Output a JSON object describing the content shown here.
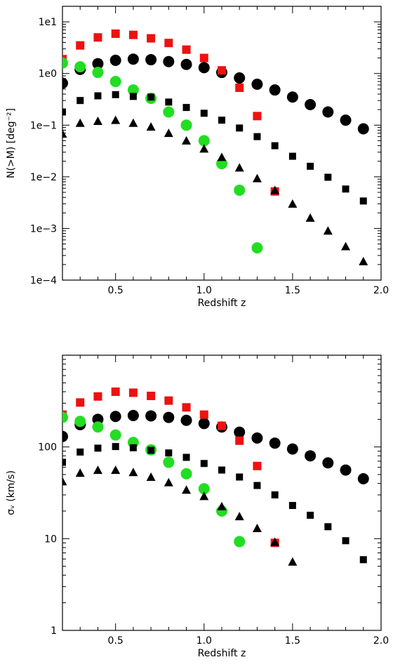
{
  "chart_data": [
    {
      "type": "scatter",
      "xlabel": "Redshift z",
      "ylabel": "N(>M) [deg⁻²]",
      "xlim": [
        0.2,
        2.0
      ],
      "ylim": [
        0.0001,
        20
      ],
      "yscale": "log",
      "grid": false,
      "x_ticks": [
        {
          "value": 0.5,
          "label": "0.5"
        },
        {
          "value": 1.0,
          "label": "1.0"
        },
        {
          "value": 1.5,
          "label": "1.5"
        },
        {
          "value": 2.0,
          "label": "2.0"
        }
      ],
      "y_ticks": [
        {
          "value": 0.0001,
          "label": "1e−4"
        },
        {
          "value": 0.001,
          "label": "1e−3"
        },
        {
          "value": 0.01,
          "label": "1e−2"
        },
        {
          "value": 0.1,
          "label": "1e−1"
        },
        {
          "value": 1,
          "label": "1e0"
        },
        {
          "value": 10,
          "label": "1e1"
        }
      ],
      "series": [
        {
          "marker": "circle-large",
          "color": "#000000",
          "x": [
            0.2,
            0.3,
            0.4,
            0.5,
            0.6,
            0.7,
            0.8,
            0.9,
            1.0,
            1.1,
            1.2,
            1.3,
            1.4,
            1.5,
            1.6,
            1.7,
            1.8,
            1.9
          ],
          "y": [
            0.65,
            1.2,
            1.55,
            1.8,
            1.9,
            1.85,
            1.7,
            1.5,
            1.3,
            1.05,
            0.82,
            0.62,
            0.48,
            0.35,
            0.25,
            0.18,
            0.125,
            0.085
          ]
        },
        {
          "marker": "square-large",
          "color": "#ee1111",
          "x": [
            0.2,
            0.3,
            0.4,
            0.5,
            0.6,
            0.7,
            0.8,
            0.9,
            1.0,
            1.1,
            1.2,
            1.3,
            1.4
          ],
          "y": [
            1.9,
            3.5,
            5.0,
            5.9,
            5.6,
            4.8,
            3.9,
            2.9,
            2.0,
            1.15,
            0.53,
            0.15,
            0.0052
          ]
        },
        {
          "marker": "circle-large",
          "color": "#22dd22",
          "x": [
            0.2,
            0.3,
            0.4,
            0.5,
            0.6,
            0.7,
            0.8,
            0.9,
            1.0,
            1.1,
            1.2,
            1.3
          ],
          "y": [
            1.6,
            1.35,
            1.05,
            0.7,
            0.48,
            0.33,
            0.18,
            0.1,
            0.05,
            0.018,
            0.0055,
            0.00042
          ]
        },
        {
          "marker": "square-small",
          "color": "#000000",
          "x": [
            0.2,
            0.3,
            0.4,
            0.5,
            0.6,
            0.7,
            0.8,
            0.9,
            1.0,
            1.1,
            1.2,
            1.3,
            1.4,
            1.5,
            1.6,
            1.7,
            1.8,
            1.9
          ],
          "y": [
            0.18,
            0.3,
            0.37,
            0.39,
            0.36,
            0.35,
            0.28,
            0.22,
            0.17,
            0.125,
            0.088,
            0.06,
            0.04,
            0.025,
            0.016,
            0.0098,
            0.0058,
            0.0034
          ]
        },
        {
          "marker": "triangle",
          "color": "#000000",
          "x": [
            0.2,
            0.3,
            0.4,
            0.5,
            0.6,
            0.7,
            0.8,
            0.9,
            1.0,
            1.1,
            1.2,
            1.3,
            1.4,
            1.5,
            1.6,
            1.7,
            1.8,
            1.9
          ],
          "y": [
            0.068,
            0.11,
            0.12,
            0.125,
            0.11,
            0.093,
            0.07,
            0.05,
            0.035,
            0.024,
            0.015,
            0.0093,
            0.0055,
            0.003,
            0.0016,
            0.0009,
            0.00045,
            0.00023
          ]
        }
      ]
    },
    {
      "type": "scatter",
      "xlabel": "Redshift z",
      "ylabel": "σᵥ (km/s)",
      "xlim": [
        0.2,
        2.0
      ],
      "ylim": [
        1,
        1000
      ],
      "yscale": "log",
      "grid": false,
      "x_ticks": [
        {
          "value": 0.5,
          "label": "0.5"
        },
        {
          "value": 1.0,
          "label": "1.0"
        },
        {
          "value": 1.5,
          "label": "1.5"
        },
        {
          "value": 2.0,
          "label": "2.0"
        }
      ],
      "y_ticks": [
        {
          "value": 1,
          "label": "1"
        },
        {
          "value": 10,
          "label": "10"
        },
        {
          "value": 100,
          "label": "100"
        }
      ],
      "series": [
        {
          "marker": "circle-large",
          "color": "#000000",
          "x": [
            0.2,
            0.3,
            0.4,
            0.5,
            0.6,
            0.7,
            0.8,
            0.9,
            1.0,
            1.1,
            1.2,
            1.3,
            1.4,
            1.5,
            1.6,
            1.7,
            1.8,
            1.9
          ],
          "y": [
            130,
            175,
            200,
            215,
            220,
            218,
            210,
            195,
            180,
            165,
            145,
            125,
            110,
            95,
            80,
            67,
            56,
            45
          ]
        },
        {
          "marker": "square-large",
          "color": "#ee1111",
          "x": [
            0.2,
            0.3,
            0.4,
            0.5,
            0.6,
            0.7,
            0.8,
            0.9,
            1.0,
            1.1,
            1.2,
            1.3,
            1.4
          ],
          "y": [
            225,
            305,
            355,
            400,
            390,
            360,
            320,
            270,
            225,
            170,
            117,
            62,
            9
          ]
        },
        {
          "marker": "circle-large",
          "color": "#22dd22",
          "x": [
            0.2,
            0.3,
            0.4,
            0.5,
            0.6,
            0.7,
            0.8,
            0.9,
            1.0,
            1.1,
            1.2
          ],
          "y": [
            210,
            190,
            165,
            135,
            112,
            93,
            68,
            51,
            35,
            20,
            9.3
          ]
        },
        {
          "marker": "square-small",
          "color": "#000000",
          "x": [
            0.2,
            0.3,
            0.4,
            0.5,
            0.6,
            0.7,
            0.8,
            0.9,
            1.0,
            1.1,
            1.2,
            1.3,
            1.4,
            1.5,
            1.6,
            1.7,
            1.8,
            1.9
          ],
          "y": [
            68,
            88,
            97,
            101,
            98,
            92,
            86,
            77,
            66,
            56,
            47,
            38,
            30,
            23,
            18,
            13.5,
            9.5,
            5.9
          ]
        },
        {
          "marker": "triangle",
          "color": "#000000",
          "x": [
            0.2,
            0.3,
            0.4,
            0.5,
            0.6,
            0.7,
            0.8,
            0.9,
            1.0,
            1.1,
            1.2,
            1.3,
            1.4,
            1.5
          ],
          "y": [
            42,
            52,
            56,
            56,
            53,
            47,
            41,
            34,
            29,
            22.5,
            17.5,
            13,
            9.2,
            5.6
          ]
        }
      ]
    }
  ]
}
